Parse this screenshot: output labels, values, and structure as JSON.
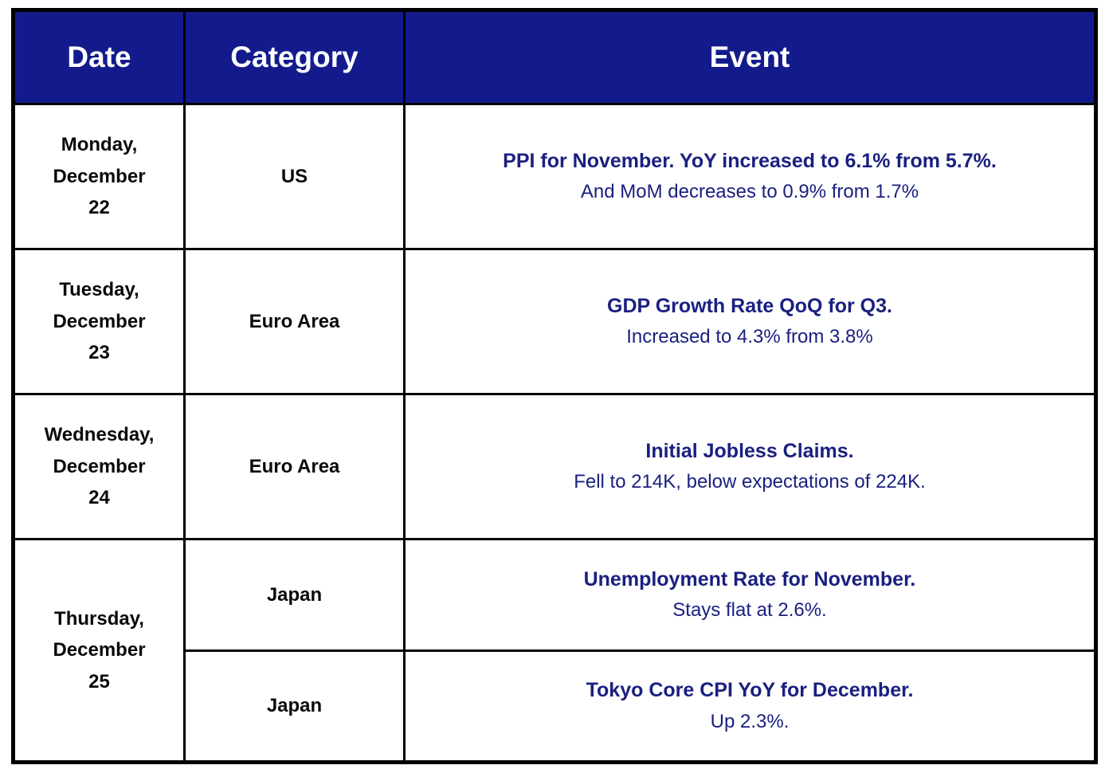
{
  "table": {
    "headers": {
      "date": "Date",
      "category": "Category",
      "event": "Event"
    },
    "rows": [
      {
        "date": "Monday,\nDecember\n22",
        "category": "US",
        "event_title": "PPI for November. YoY increased to 6.1% from 5.7%.",
        "event_detail": "And MoM decreases to 0.9% from 1.7%"
      },
      {
        "date": "Tuesday,\nDecember\n23",
        "category": "Euro Area",
        "event_title": "GDP Growth Rate QoQ for Q3.",
        "event_detail": "Increased to 4.3% from 3.8%"
      },
      {
        "date": "Wednesday,\nDecember\n24",
        "category": "Euro Area",
        "event_title": "Initial Jobless Claims.",
        "event_detail": "Fell to 214K, below expectations of 224K."
      },
      {
        "date": "Thursday,\nDecember\n25",
        "category": "Japan",
        "event_title": "Unemployment Rate for November.",
        "event_detail": "Stays flat at 2.6%."
      },
      {
        "category": "Japan",
        "event_title": "Tokyo Core CPI YoY for December.",
        "event_detail": "Up 2.3%."
      }
    ],
    "colors": {
      "header_bg": "#131b8c",
      "header_text": "#ffffff",
      "event_text": "#1a2080",
      "body_text": "#0a0a0a",
      "border": "#000000"
    }
  }
}
